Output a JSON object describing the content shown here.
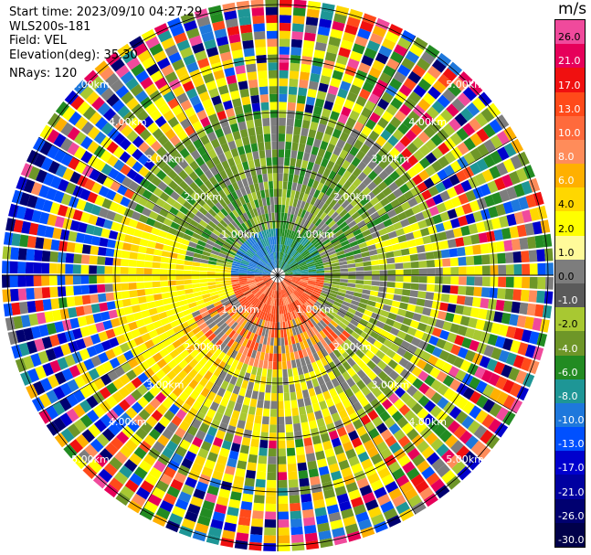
{
  "info": {
    "start_time": "Start time: 2023/09/10 04:27:29",
    "instrument": "WLS200s-181",
    "field": "Field: VEL",
    "elevation": "Elevation(deg): 35.30",
    "nrays": "NRays: 120"
  },
  "colorbar": {
    "unit": "m/s",
    "segments": [
      {
        "label": "26.0",
        "color": "#f04a9c",
        "light": false
      },
      {
        "label": "21.0",
        "color": "#e6005a",
        "light": true
      },
      {
        "label": "17.0",
        "color": "#f01010",
        "light": true
      },
      {
        "label": "13.0",
        "color": "#ff4a1a",
        "light": true
      },
      {
        "label": "10.0",
        "color": "#ff6a3c",
        "light": true
      },
      {
        "label": "8.0",
        "color": "#ff8c5a",
        "light": true
      },
      {
        "label": "6.0",
        "color": "#ffb000",
        "light": true
      },
      {
        "label": "4.0",
        "color": "#ffd700",
        "light": false
      },
      {
        "label": "2.0",
        "color": "#ffff00",
        "light": false
      },
      {
        "label": "1.0",
        "color": "#fffa9a",
        "light": false
      },
      {
        "label": "0.0",
        "color": "#7d7d7d",
        "light": false
      },
      {
        "label": "-1.0",
        "color": "#5a5a5a",
        "light": true
      },
      {
        "label": "-2.0",
        "color": "#a8c832",
        "light": false
      },
      {
        "label": "-4.0",
        "color": "#6e9628",
        "light": true
      },
      {
        "label": "-6.0",
        "color": "#228b22",
        "light": true
      },
      {
        "label": "-8.0",
        "color": "#1e9696",
        "light": true
      },
      {
        "label": "-10.0",
        "color": "#1e78dc",
        "light": true
      },
      {
        "label": "-13.0",
        "color": "#0050ff",
        "light": true
      },
      {
        "label": "-17.0",
        "color": "#0000cd",
        "light": true
      },
      {
        "label": "-21.0",
        "color": "#0000a0",
        "light": true
      },
      {
        "label": "-26.0",
        "color": "#000070",
        "light": true
      },
      {
        "label": "-30.0",
        "color": "#00004a",
        "light": true
      }
    ]
  },
  "range_labels": [
    "1.00km",
    "2.00km",
    "3.00km",
    "4.00km",
    "5.00km"
  ],
  "palette": [
    "#f04a9c",
    "#e6005a",
    "#f01010",
    "#ff4a1a",
    "#ff8c5a",
    "#ffb000",
    "#ffd700",
    "#ffff00",
    "#7d7d7d",
    "#a8c832",
    "#6e9628",
    "#228b22",
    "#1e9696",
    "#1e78dc",
    "#0050ff",
    "#0000cd",
    "#000070"
  ]
}
